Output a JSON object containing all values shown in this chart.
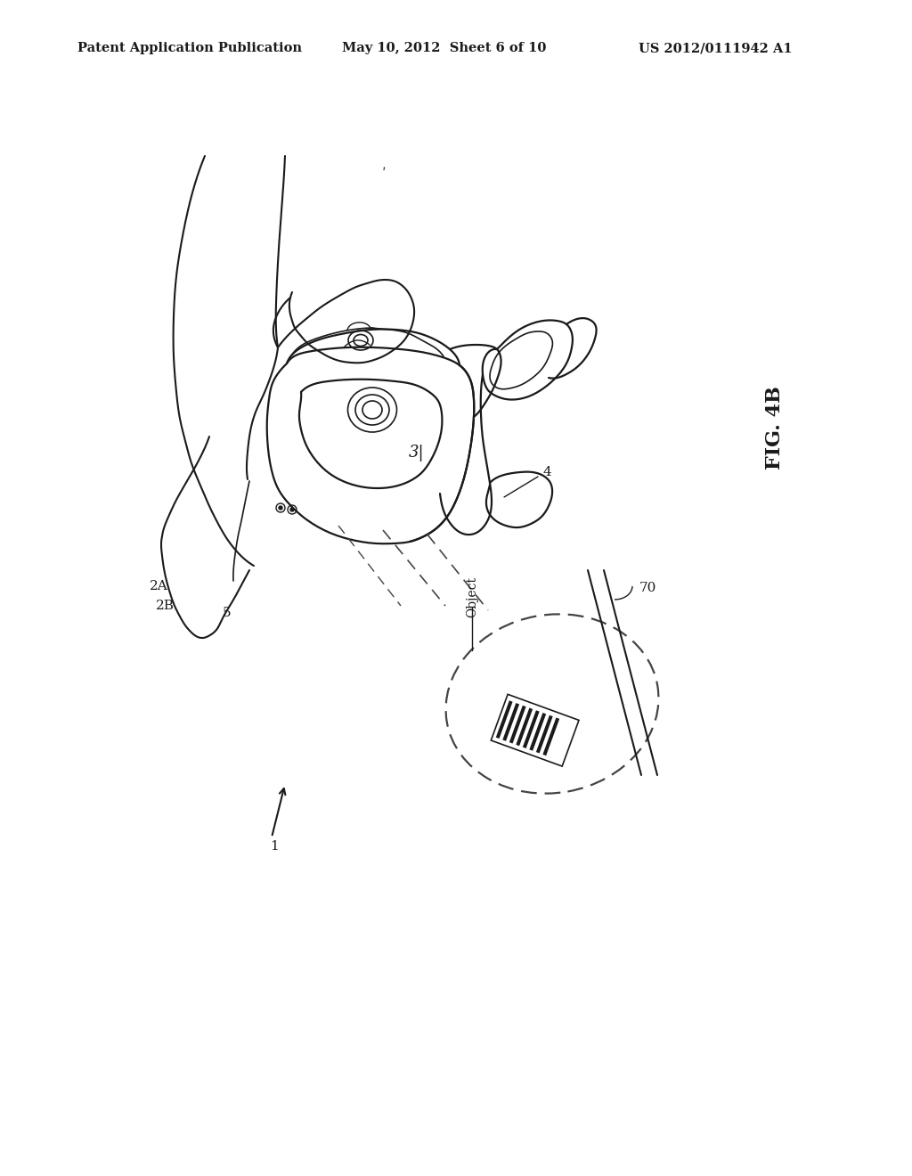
{
  "background_color": "#ffffff",
  "header_left": "Patent Application Publication",
  "header_mid": "May 10, 2012  Sheet 6 of 10",
  "header_right": "US 2012/0111942 A1",
  "fig_label": "FIG. 4B",
  "label_fontsize": 11,
  "line_color": "#1a1a1a",
  "dashed_color": "#444444",
  "fig_width": 10.24,
  "fig_height": 13.2
}
